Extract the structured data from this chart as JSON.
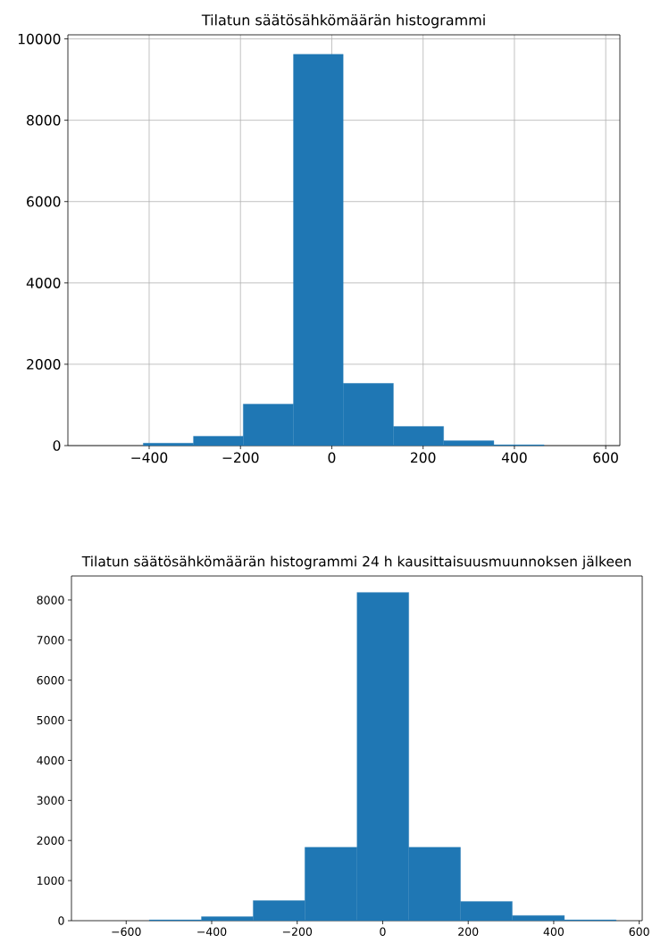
{
  "chart_data": [
    {
      "type": "histogram",
      "title": "Tilatun säätösähkömäärän histogrammi",
      "color": "#1f77b4",
      "bins": [
        -413,
        -303,
        -194,
        -84,
        25,
        135,
        245,
        355,
        465
      ],
      "values": [
        60,
        230,
        1020,
        9620,
        1530,
        470,
        120,
        20
      ],
      "xlim": [
        -578,
        631
      ],
      "ylim": [
        0,
        10100
      ],
      "xticks": [
        {
          "value": -400,
          "label": "−400"
        },
        {
          "value": -200,
          "label": "−200"
        },
        0,
        200,
        400,
        600
      ],
      "yticks": [
        0,
        2000,
        4000,
        6000,
        8000,
        10000
      ],
      "grid": true
    },
    {
      "type": "histogram",
      "title": "Tilatun säätösähkömäärän histogrammi 24 h kausittaisuusmuunnoksen jälkeen",
      "color": "#1f77b4",
      "bins": [
        -546,
        -424,
        -303,
        -182,
        -60,
        61,
        182,
        303,
        425,
        546
      ],
      "values": [
        20,
        100,
        500,
        1830,
        8190,
        1830,
        480,
        130,
        20
      ],
      "xlim": [
        -728,
        607
      ],
      "ylim": [
        0,
        8600
      ],
      "xticks": [
        {
          "value": -600,
          "label": "−600"
        },
        {
          "value": -400,
          "label": "−400"
        },
        {
          "value": -200,
          "label": "−200"
        },
        0,
        200,
        400,
        600
      ],
      "yticks": [
        0,
        1000,
        2000,
        3000,
        4000,
        5000,
        6000,
        7000,
        8000
      ],
      "grid": false
    }
  ]
}
